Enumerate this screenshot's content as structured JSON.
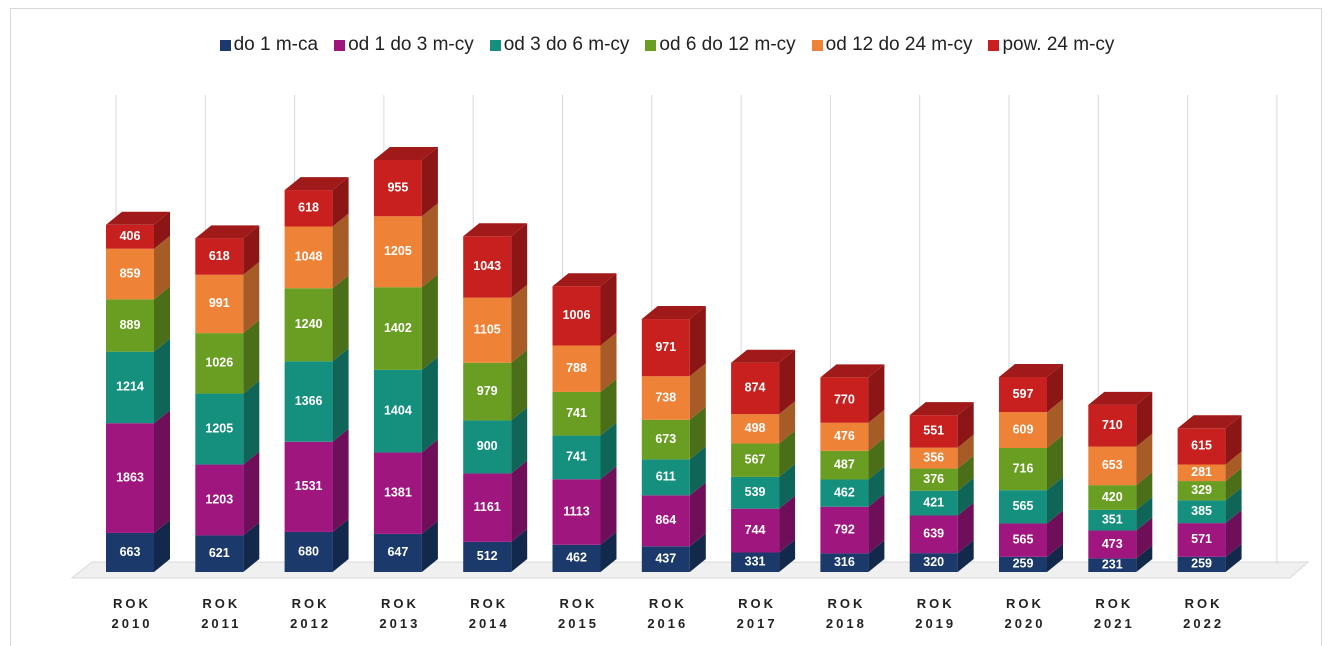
{
  "chart_data": {
    "type": "bar3d_stacked",
    "categories": [
      "ROK 2010",
      "ROK 2011",
      "ROK 2012",
      "ROK 2013",
      "ROK 2014",
      "ROK 2015",
      "ROK 2016",
      "ROK 2017",
      "ROK 2018",
      "ROK 2019",
      "ROK 2020",
      "ROK 2021",
      "ROK 2022"
    ],
    "series": [
      {
        "name": "do 1 m-ca",
        "color": "#1b3a6b",
        "values": [
          663,
          621,
          680,
          647,
          512,
          462,
          437,
          331,
          316,
          320,
          259,
          231,
          259
        ]
      },
      {
        "name": "od 1 do 3 m-cy",
        "color": "#a0167f",
        "values": [
          1863,
          1203,
          1531,
          1381,
          1161,
          1113,
          864,
          744,
          792,
          639,
          565,
          473,
          571
        ]
      },
      {
        "name": "od 3 do 6 m-cy",
        "color": "#16907e",
        "values": [
          1214,
          1205,
          1366,
          1404,
          900,
          741,
          611,
          539,
          462,
          421,
          565,
          351,
          385
        ]
      },
      {
        "name": "od 6 do 12 m-cy",
        "color": "#6a9e22",
        "values": [
          889,
          1026,
          1240,
          1402,
          979,
          741,
          673,
          567,
          487,
          376,
          716,
          420,
          329
        ]
      },
      {
        "name": "od 12 do 24 m-cy",
        "color": "#ee8236",
        "values": [
          859,
          991,
          1048,
          1205,
          1105,
          788,
          738,
          498,
          476,
          356,
          609,
          653,
          281
        ]
      },
      {
        "name": "pow. 24 m-cy",
        "color": "#c8201f",
        "values": [
          406,
          618,
          618,
          955,
          1043,
          1006,
          971,
          874,
          770,
          551,
          597,
          710,
          615
        ]
      }
    ],
    "legend": "top"
  }
}
